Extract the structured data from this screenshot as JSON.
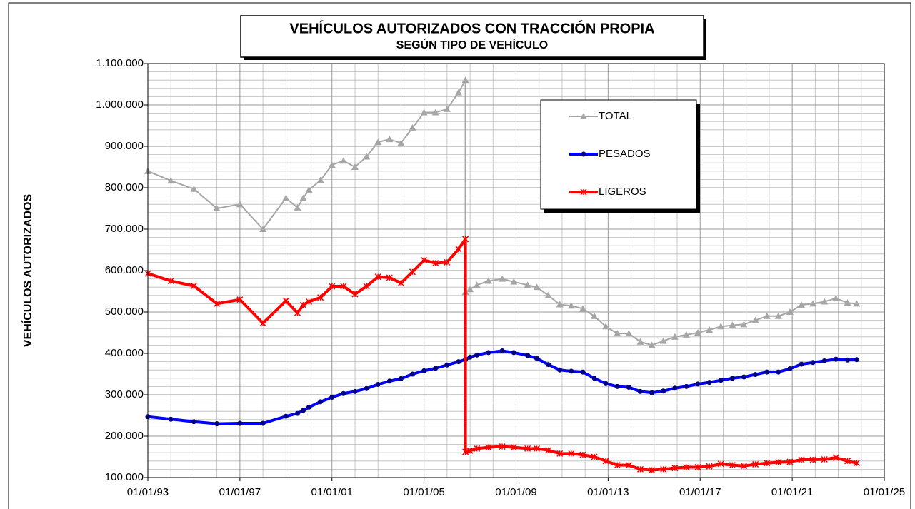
{
  "chart_data": {
    "type": "line",
    "title": "VEHÍCULOS AUTORIZADOS CON TRACCIÓN PROPIA",
    "subtitle": "SEGÚN TIPO DE VEHÍCULO",
    "y_label": "VEHÍCULOS  AUTORIZADOS",
    "x": [
      1993,
      1994,
      1995,
      1996,
      1997,
      1998,
      1999,
      1999.5,
      1999.75,
      2000,
      2000.5,
      2001,
      2001.5,
      2002,
      2002.5,
      2003,
      2003.5,
      2004,
      2004.5,
      2005,
      2005.5,
      2006,
      2006.5,
      2006.8,
      2006.8,
      2007,
      2007.3,
      2007.8,
      2008.4,
      2008.9,
      2009.5,
      2009.9,
      2010.4,
      2010.9,
      2011.4,
      2011.9,
      2012.4,
      2012.9,
      2013.4,
      2013.9,
      2014.4,
      2014.9,
      2015.4,
      2015.9,
      2016.4,
      2016.9,
      2017.4,
      2017.9,
      2018.4,
      2018.9,
      2019.4,
      2019.9,
      2020.4,
      2020.9,
      2021.4,
      2021.9,
      2022.4,
      2022.9,
      2023.4,
      2023.8
    ],
    "series": [
      {
        "name": "TOTAL",
        "color": "#a6a6a6",
        "marker": "triangle",
        "values": [
          840000,
          817000,
          797000,
          750000,
          760000,
          700000,
          775000,
          752000,
          775000,
          795000,
          818000,
          855000,
          865000,
          850000,
          875000,
          910000,
          917000,
          908000,
          945000,
          982000,
          982000,
          990000,
          1030000,
          1060000,
          548000,
          555000,
          565000,
          575000,
          580000,
          573000,
          565000,
          560000,
          540000,
          518000,
          515000,
          508000,
          490000,
          465000,
          448000,
          448000,
          428000,
          420000,
          430000,
          440000,
          445000,
          450000,
          457000,
          465000,
          468000,
          470000,
          480000,
          490000,
          490000,
          500000,
          517000,
          520000,
          525000,
          533000,
          522000,
          520000
        ]
      },
      {
        "name": "PESADOS",
        "color": "#0000ff",
        "marker": "circle",
        "values": [
          247000,
          241000,
          235000,
          230000,
          231000,
          231000,
          248000,
          255000,
          262000,
          270000,
          283000,
          294000,
          303000,
          308000,
          315000,
          325000,
          333000,
          339000,
          350000,
          358000,
          364000,
          372000,
          380000,
          385000,
          385000,
          391000,
          396000,
          402000,
          406000,
          402000,
          395000,
          388000,
          373000,
          360000,
          357000,
          355000,
          340000,
          327000,
          320000,
          318000,
          308000,
          305000,
          309000,
          316000,
          320000,
          326000,
          330000,
          335000,
          340000,
          343000,
          349000,
          355000,
          355000,
          363000,
          374000,
          378000,
          382000,
          386000,
          384000,
          385000
        ]
      },
      {
        "name": "LIGEROS",
        "color": "#ff0000",
        "marker": "star",
        "values": [
          593000,
          575000,
          563000,
          520000,
          530000,
          473000,
          527000,
          498000,
          517000,
          525000,
          535000,
          562000,
          562000,
          543000,
          562000,
          585000,
          583000,
          570000,
          597000,
          625000,
          618000,
          620000,
          652000,
          676000,
          162000,
          165000,
          170000,
          173000,
          175000,
          173000,
          170000,
          170000,
          166000,
          158000,
          158000,
          155000,
          150000,
          140000,
          130000,
          130000,
          120000,
          118000,
          120000,
          123000,
          125000,
          125000,
          127000,
          133000,
          130000,
          128000,
          132000,
          135000,
          137000,
          138000,
          143000,
          143000,
          144000,
          148000,
          140000,
          135000
        ]
      }
    ],
    "xlim": [
      1993,
      2025
    ],
    "xticks": [
      {
        "value": 1993,
        "label": "01/01/93"
      },
      {
        "value": 1997,
        "label": "01/01/97"
      },
      {
        "value": 2001,
        "label": "01/01/01"
      },
      {
        "value": 2005,
        "label": "01/01/05"
      },
      {
        "value": 2009,
        "label": "01/01/09"
      },
      {
        "value": 2013,
        "label": "01/01/13"
      },
      {
        "value": 2017,
        "label": "01/01/17"
      },
      {
        "value": 2021,
        "label": "01/01/21"
      },
      {
        "value": 2025,
        "label": "01/01/25"
      }
    ],
    "ylim": [
      100000,
      1100000
    ],
    "yticks": [
      {
        "value": 100000,
        "label": "100.000"
      },
      {
        "value": 200000,
        "label": "200.000"
      },
      {
        "value": 300000,
        "label": "300.000"
      },
      {
        "value": 400000,
        "label": "400.000"
      },
      {
        "value": 500000,
        "label": "500.000"
      },
      {
        "value": 600000,
        "label": "600.000"
      },
      {
        "value": 700000,
        "label": "700.000"
      },
      {
        "value": 800000,
        "label": "800.000"
      },
      {
        "value": 900000,
        "label": "900.000"
      },
      {
        "value": 1000000,
        "label": "1.000.000"
      },
      {
        "value": 1100000,
        "label": "1.100.000"
      }
    ],
    "grid": true
  }
}
